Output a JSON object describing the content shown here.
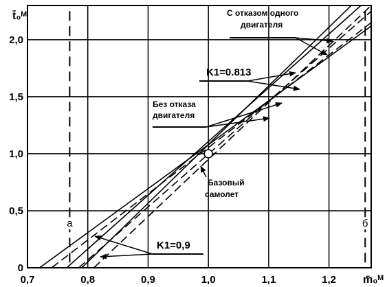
{
  "chart_data": {
    "type": "line",
    "title": "",
    "xlabel": "m̄₀ᴹ",
    "ylabel": "t̄₀ᴹ",
    "xlim": [
      0.7,
      1.27
    ],
    "ylim": [
      0,
      2.3
    ],
    "grid": true,
    "x_ticks": [
      0.7,
      0.8,
      0.9,
      1.0,
      1.1,
      1.2
    ],
    "x_tick_labels": [
      "0,7",
      "0,8",
      "0,9",
      "1,0",
      "1,1",
      "1,2"
    ],
    "y_ticks": [
      0,
      0.5,
      1.0,
      1.5,
      2.0
    ],
    "y_tick_labels": [
      "0",
      "0,5",
      "1,0",
      "1,5",
      "2,0"
    ],
    "series": [
      {
        "style": "solid",
        "x": [
          0.72,
          1.27
        ],
        "y": [
          0.0,
          2.12
        ]
      },
      {
        "style": "solid",
        "x": [
          0.765,
          1.27
        ],
        "y": [
          0.0,
          2.38
        ]
      },
      {
        "style": "dashed",
        "x": [
          0.785,
          1.27
        ],
        "y": [
          0.0,
          2.25
        ]
      },
      {
        "style": "dashed",
        "x": [
          0.74,
          1.27
        ],
        "y": [
          0.0,
          2.15
        ]
      },
      {
        "style": "solid",
        "x": [
          0.79,
          1.27
        ],
        "y": [
          0.0,
          2.47
        ]
      },
      {
        "style": "dashed",
        "x": [
          0.81,
          1.27
        ],
        "y": [
          0.0,
          2.3
        ]
      }
    ],
    "base_point": {
      "x": 1.0,
      "y": 1.0
    },
    "vertical_markers": [
      {
        "label": "а",
        "x": 0.77
      },
      {
        "label": "б",
        "x": 1.26
      }
    ],
    "annotations": {
      "engine_failure": "С отказом одного двигателя",
      "k1_0813": "K1=0.813",
      "no_failure": "Без отказа двигателя",
      "base_aircraft": "Базовый самолет",
      "k1_09": "K1=0,9"
    }
  }
}
